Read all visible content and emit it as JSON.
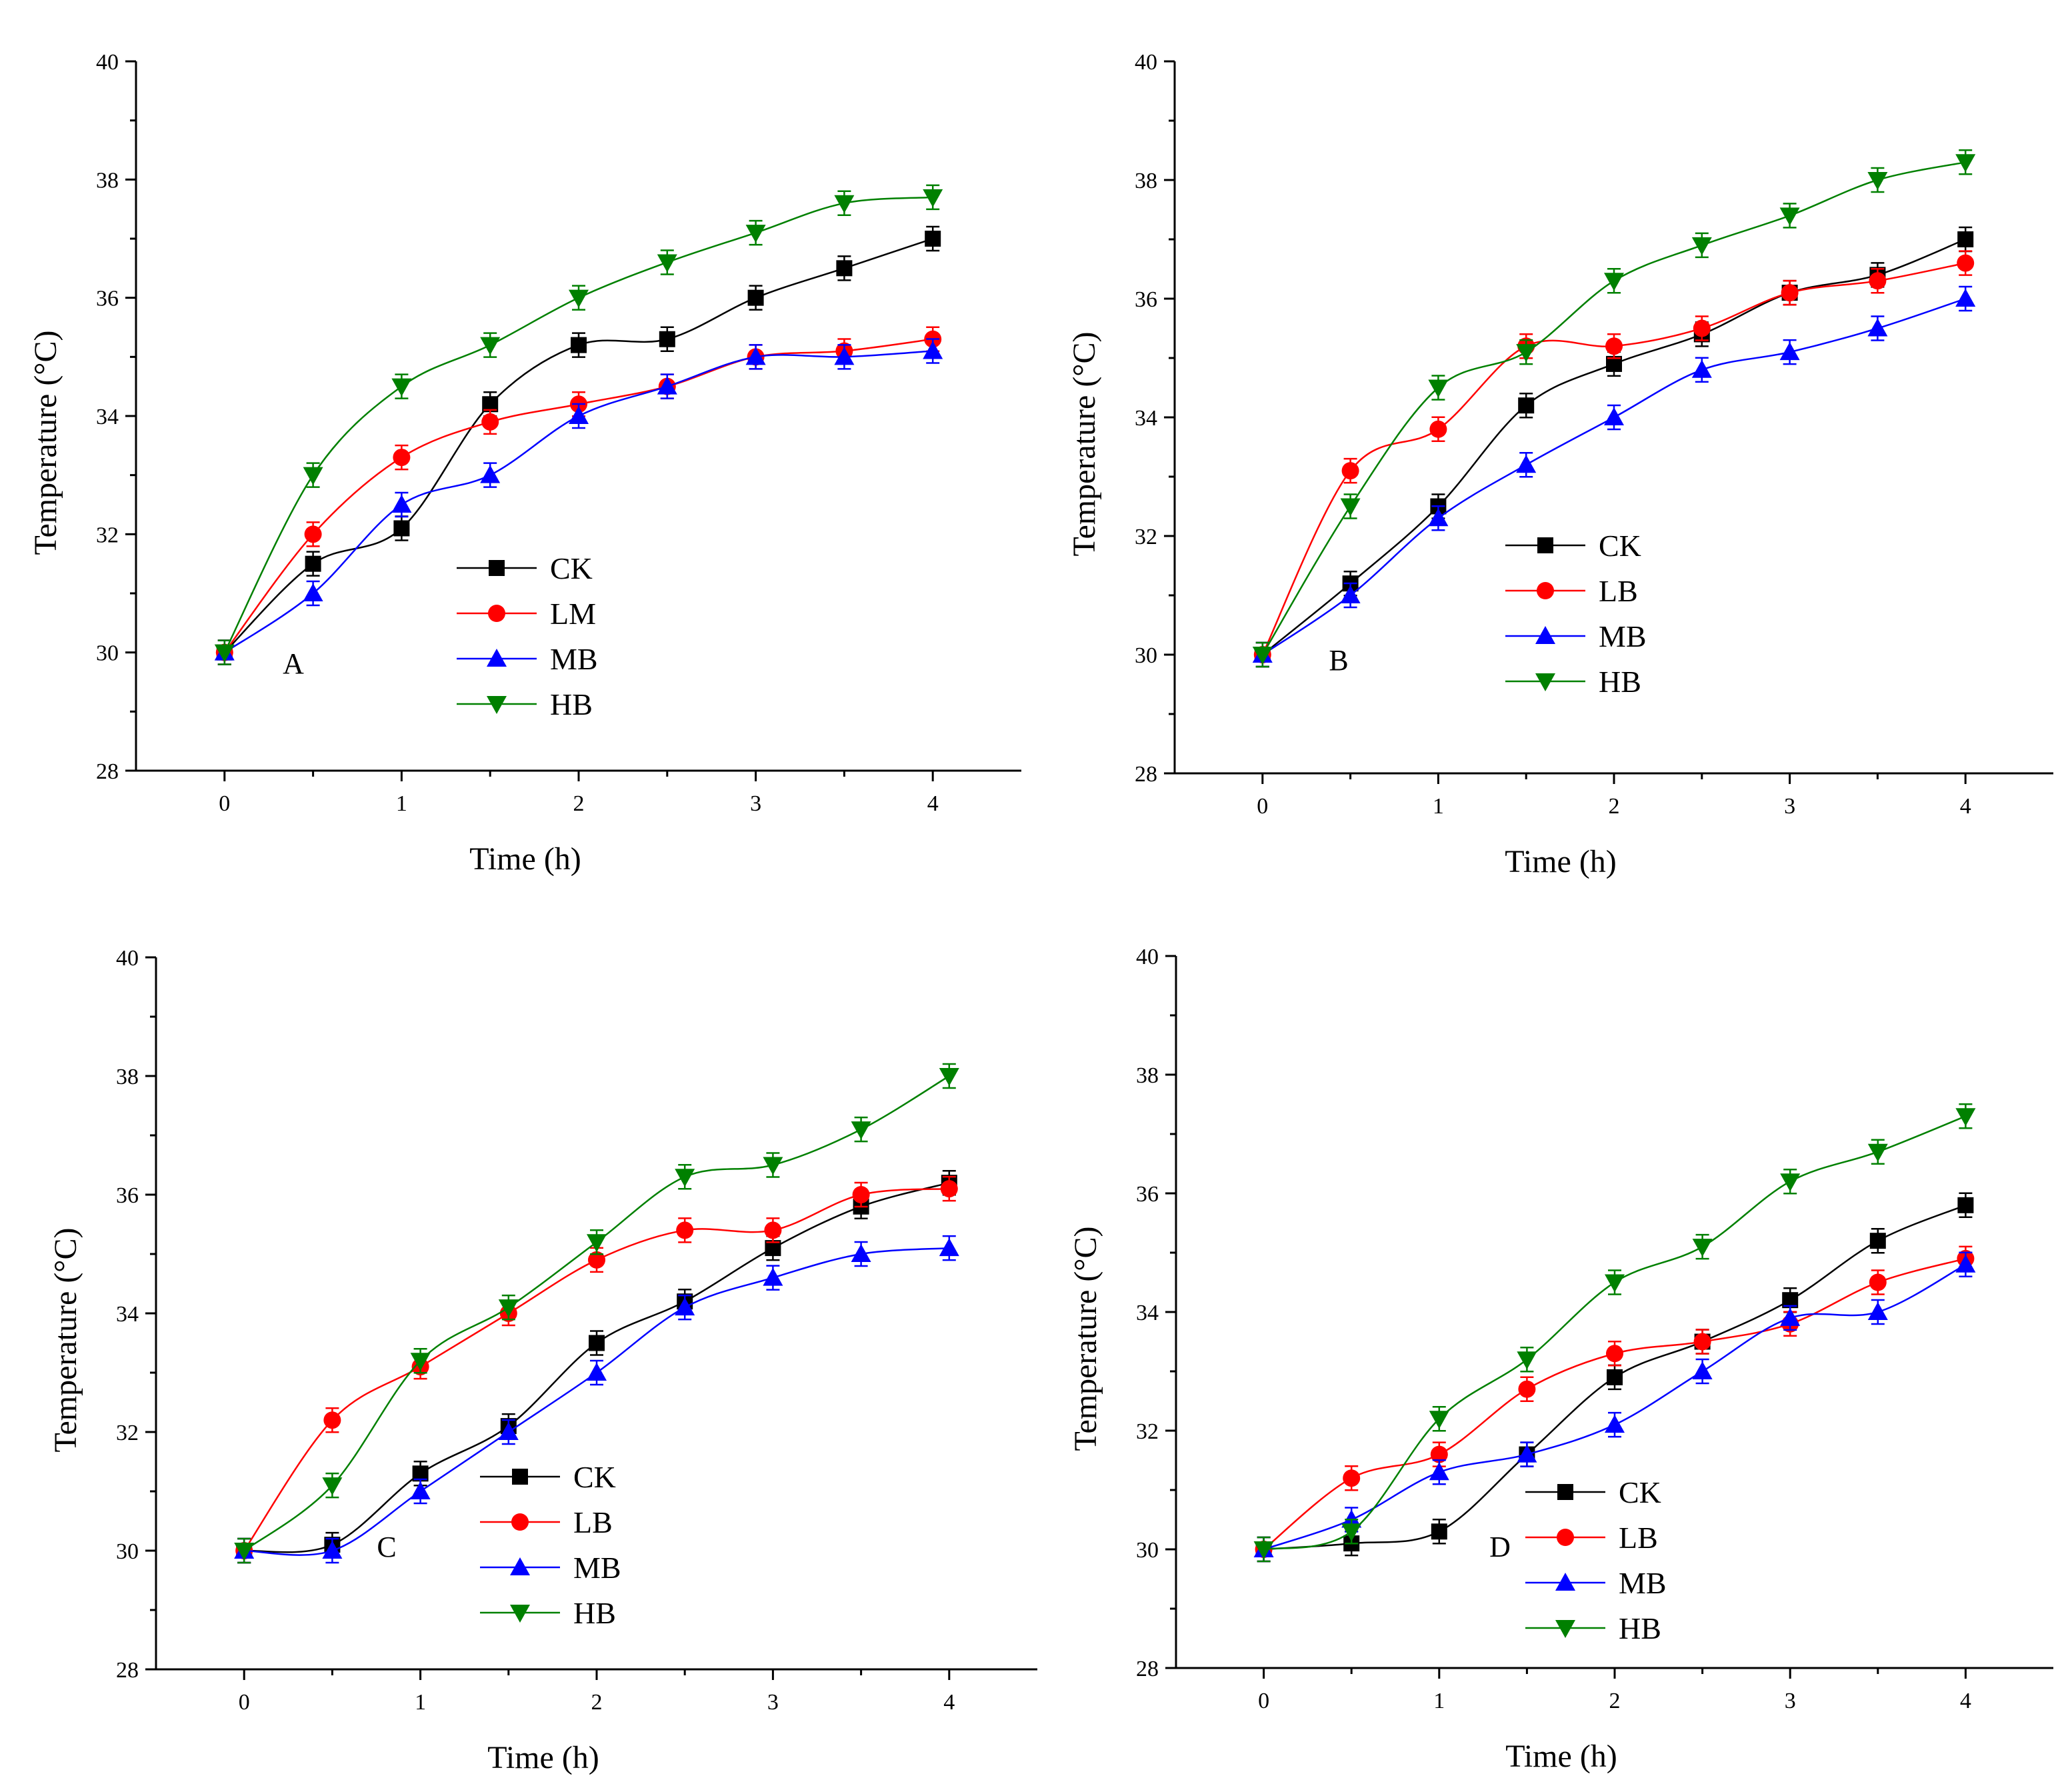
{
  "chart_data": [
    {
      "type": "line",
      "panel_label": "A",
      "xlabel": "Time (h)",
      "ylabel": "Temperature (°C)",
      "xlim": [
        -0.5,
        4.5
      ],
      "ylim": [
        28,
        40
      ],
      "xticks": [
        "0",
        "1",
        "2",
        "3",
        "4"
      ],
      "yticks": [
        "28",
        "30",
        "32",
        "34",
        "36",
        "38",
        "40"
      ],
      "x": [
        0,
        0.5,
        1,
        1.5,
        2,
        2.5,
        3,
        3.5,
        4
      ],
      "legend_position": "center",
      "series": [
        {
          "name": "CK",
          "color": "#000000",
          "marker": "square",
          "values": [
            30.0,
            31.5,
            32.1,
            34.2,
            35.2,
            35.3,
            36.0,
            36.5,
            37.0
          ]
        },
        {
          "name": "LM",
          "color": "#ff0000",
          "marker": "circle",
          "values": [
            30.0,
            32.0,
            33.3,
            33.9,
            34.2,
            34.5,
            35.0,
            35.1,
            35.3
          ]
        },
        {
          "name": "MB",
          "color": "#0000ff",
          "marker": "triangle-up",
          "values": [
            30.0,
            31.0,
            32.5,
            33.0,
            34.0,
            34.5,
            35.0,
            35.0,
            35.1
          ]
        },
        {
          "name": "HB",
          "color": "#008000",
          "marker": "triangle-down",
          "values": [
            30.0,
            33.0,
            34.5,
            35.2,
            36.0,
            36.6,
            37.1,
            37.6,
            37.7
          ]
        }
      ]
    },
    {
      "type": "line",
      "panel_label": "B",
      "xlabel": "Time (h)",
      "ylabel": "Temperature (°C)",
      "xlim": [
        -0.5,
        4.5
      ],
      "ylim": [
        28,
        40
      ],
      "xticks": [
        "0",
        "1",
        "2",
        "3",
        "4"
      ],
      "yticks": [
        "28",
        "30",
        "32",
        "34",
        "36",
        "38",
        "40"
      ],
      "x": [
        0,
        0.5,
        1,
        1.5,
        2,
        2.5,
        3,
        3.5,
        4
      ],
      "legend_position": "center",
      "series": [
        {
          "name": "CK",
          "color": "#000000",
          "marker": "square",
          "values": [
            30.0,
            31.2,
            32.5,
            34.2,
            34.9,
            35.4,
            36.1,
            36.4,
            37.0
          ]
        },
        {
          "name": "LB",
          "color": "#ff0000",
          "marker": "circle",
          "values": [
            30.0,
            33.1,
            33.8,
            35.2,
            35.2,
            35.5,
            36.1,
            36.3,
            36.6
          ]
        },
        {
          "name": "MB",
          "color": "#0000ff",
          "marker": "triangle-up",
          "values": [
            30.0,
            31.0,
            32.3,
            33.2,
            34.0,
            34.8,
            35.1,
            35.5,
            36.0
          ]
        },
        {
          "name": "HB",
          "color": "#008000",
          "marker": "triangle-down",
          "values": [
            30.0,
            32.5,
            34.5,
            35.1,
            36.3,
            36.9,
            37.4,
            38.0,
            38.3
          ]
        }
      ]
    },
    {
      "type": "line",
      "panel_label": "C",
      "xlabel": "Time (h)",
      "ylabel": "Temperature (°C)",
      "xlim": [
        -0.5,
        4.5
      ],
      "ylim": [
        28,
        40
      ],
      "xticks": [
        "0",
        "1",
        "2",
        "3",
        "4"
      ],
      "yticks": [
        "28",
        "30",
        "32",
        "34",
        "36",
        "38",
        "40"
      ],
      "x": [
        0,
        0.5,
        1,
        1.5,
        2,
        2.5,
        3,
        3.5,
        4
      ],
      "legend_position": "center",
      "series": [
        {
          "name": "CK",
          "color": "#000000",
          "marker": "square",
          "values": [
            30.0,
            30.1,
            31.3,
            32.1,
            33.5,
            34.2,
            35.1,
            35.8,
            36.2
          ]
        },
        {
          "name": "LB",
          "color": "#ff0000",
          "marker": "circle",
          "values": [
            30.0,
            32.2,
            33.1,
            34.0,
            34.9,
            35.4,
            35.4,
            36.0,
            36.1
          ]
        },
        {
          "name": "MB",
          "color": "#0000ff",
          "marker": "triangle-up",
          "values": [
            30.0,
            30.0,
            31.0,
            32.0,
            33.0,
            34.1,
            34.6,
            35.0,
            35.1
          ]
        },
        {
          "name": "HB",
          "color": "#008000",
          "marker": "triangle-down",
          "values": [
            30.0,
            31.1,
            33.2,
            34.1,
            35.2,
            36.3,
            36.5,
            37.1,
            38.0
          ]
        }
      ]
    },
    {
      "type": "line",
      "panel_label": "D",
      "xlabel": "Time (h)",
      "ylabel": "Temperature (°C)",
      "xlim": [
        -0.5,
        4.5
      ],
      "ylim": [
        28,
        40
      ],
      "xticks": [
        "0",
        "1",
        "2",
        "3",
        "4"
      ],
      "yticks": [
        "28",
        "30",
        "32",
        "34",
        "36",
        "38",
        "40"
      ],
      "x": [
        0,
        0.5,
        1,
        1.5,
        2,
        2.5,
        3,
        3.5,
        4
      ],
      "legend_position": "bottom-center",
      "series": [
        {
          "name": "CK",
          "color": "#000000",
          "marker": "square",
          "values": [
            30.0,
            30.1,
            30.3,
            31.6,
            32.9,
            33.5,
            34.2,
            35.2,
            35.8
          ]
        },
        {
          "name": "LB",
          "color": "#ff0000",
          "marker": "circle",
          "values": [
            30.0,
            31.2,
            31.6,
            32.7,
            33.3,
            33.5,
            33.8,
            34.5,
            34.9
          ]
        },
        {
          "name": "MB",
          "color": "#0000ff",
          "marker": "triangle-up",
          "values": [
            30.0,
            30.5,
            31.3,
            31.6,
            32.1,
            33.0,
            33.9,
            34.0,
            34.8
          ]
        },
        {
          "name": "HB",
          "color": "#008000",
          "marker": "triangle-down",
          "values": [
            30.0,
            30.3,
            32.2,
            33.2,
            34.5,
            35.1,
            36.2,
            36.7,
            37.3
          ]
        }
      ]
    }
  ]
}
